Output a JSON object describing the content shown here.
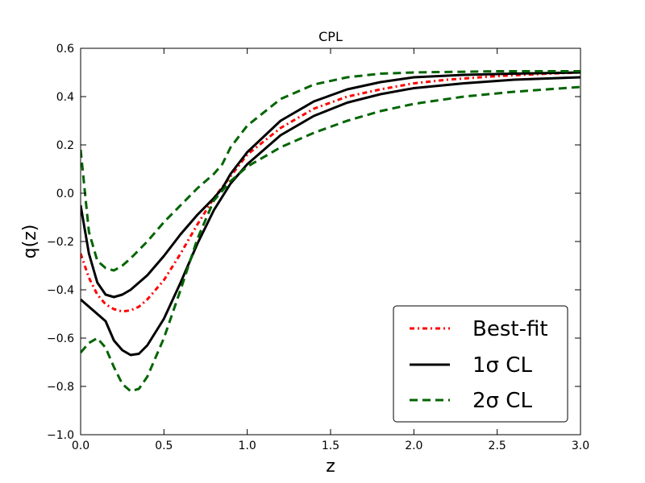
{
  "chart_data": {
    "type": "line",
    "title": "CPL",
    "xlabel": "z",
    "ylabel": "q(z)",
    "xlim": [
      0.0,
      3.0
    ],
    "ylim": [
      -1.0,
      0.6
    ],
    "xticks": [
      "0.0",
      "0.5",
      "1.0",
      "1.5",
      "2.0",
      "2.5",
      "3.0"
    ],
    "yticks": [
      "−1.0",
      "−0.8",
      "−0.6",
      "−0.4",
      "−0.2",
      "0.0",
      "0.2",
      "0.4",
      "0.6"
    ],
    "grid": false,
    "legend_position": "lower-right",
    "legend": [
      {
        "label": "Best-fit",
        "color": "#ff0000",
        "style": "dash-dot"
      },
      {
        "label": "1σ CL",
        "color": "#000000",
        "style": "solid"
      },
      {
        "label": "2σ CL",
        "color": "#006400",
        "style": "dashed"
      }
    ],
    "series": [
      {
        "name": "Best-fit",
        "legend_index": 0,
        "color": "#ff0000",
        "style": "dash-dot",
        "x": [
          0.0,
          0.05,
          0.1,
          0.15,
          0.2,
          0.25,
          0.3,
          0.35,
          0.4,
          0.5,
          0.6,
          0.7,
          0.8,
          0.9,
          1.0,
          1.2,
          1.4,
          1.6,
          1.8,
          2.0,
          2.2,
          2.5,
          2.8,
          3.0
        ],
        "y": [
          -0.25,
          -0.35,
          -0.42,
          -0.46,
          -0.48,
          -0.49,
          -0.485,
          -0.47,
          -0.44,
          -0.36,
          -0.25,
          -0.13,
          -0.02,
          0.07,
          0.16,
          0.27,
          0.35,
          0.4,
          0.43,
          0.455,
          0.47,
          0.485,
          0.495,
          0.5
        ]
      },
      {
        "name": "1σ CL",
        "legend_index": 1,
        "color": "#000000",
        "style": "solid",
        "x": [
          0.0,
          0.05,
          0.1,
          0.15,
          0.2,
          0.25,
          0.3,
          0.4,
          0.5,
          0.6,
          0.7,
          0.8,
          0.85,
          0.9,
          1.0,
          1.2,
          1.4,
          1.6,
          1.8,
          2.0,
          2.3,
          2.6,
          3.0
        ],
        "y": [
          -0.05,
          -0.25,
          -0.37,
          -0.42,
          -0.43,
          -0.42,
          -0.4,
          -0.34,
          -0.26,
          -0.17,
          -0.09,
          -0.02,
          0.02,
          0.08,
          0.17,
          0.3,
          0.38,
          0.43,
          0.46,
          0.48,
          0.49,
          0.495,
          0.5
        ]
      },
      {
        "name": "1σ CL",
        "color": "#000000",
        "style": "solid",
        "x": [
          0.0,
          0.05,
          0.1,
          0.15,
          0.2,
          0.25,
          0.3,
          0.35,
          0.4,
          0.5,
          0.6,
          0.7,
          0.8,
          0.9,
          1.0,
          1.2,
          1.4,
          1.6,
          1.8,
          2.0,
          2.3,
          2.6,
          3.0
        ],
        "y": [
          -0.44,
          -0.47,
          -0.5,
          -0.53,
          -0.61,
          -0.65,
          -0.67,
          -0.665,
          -0.63,
          -0.52,
          -0.37,
          -0.21,
          -0.07,
          0.04,
          0.12,
          0.24,
          0.32,
          0.375,
          0.41,
          0.435,
          0.455,
          0.47,
          0.48
        ]
      },
      {
        "name": "2σ CL",
        "legend_index": 2,
        "color": "#006400",
        "style": "dashed",
        "x": [
          0.0,
          0.05,
          0.1,
          0.15,
          0.2,
          0.25,
          0.3,
          0.4,
          0.5,
          0.6,
          0.7,
          0.8,
          0.85,
          0.9,
          1.0,
          1.2,
          1.4,
          1.6,
          1.8,
          2.0,
          2.5,
          3.0
        ],
        "y": [
          0.18,
          -0.16,
          -0.28,
          -0.31,
          -0.32,
          -0.3,
          -0.27,
          -0.2,
          -0.12,
          -0.05,
          0.02,
          0.08,
          0.12,
          0.19,
          0.28,
          0.39,
          0.45,
          0.48,
          0.495,
          0.5,
          0.505,
          0.505
        ]
      },
      {
        "name": "2σ CL",
        "color": "#006400",
        "style": "dashed",
        "x": [
          0.0,
          0.05,
          0.1,
          0.15,
          0.2,
          0.25,
          0.3,
          0.35,
          0.4,
          0.5,
          0.6,
          0.7,
          0.8,
          0.9,
          1.0,
          1.2,
          1.4,
          1.6,
          1.8,
          2.0,
          2.3,
          2.6,
          3.0
        ],
        "y": [
          -0.66,
          -0.62,
          -0.6,
          -0.64,
          -0.72,
          -0.79,
          -0.82,
          -0.81,
          -0.76,
          -0.6,
          -0.4,
          -0.19,
          -0.03,
          0.05,
          0.11,
          0.19,
          0.25,
          0.3,
          0.34,
          0.37,
          0.4,
          0.42,
          0.44
        ]
      }
    ]
  }
}
